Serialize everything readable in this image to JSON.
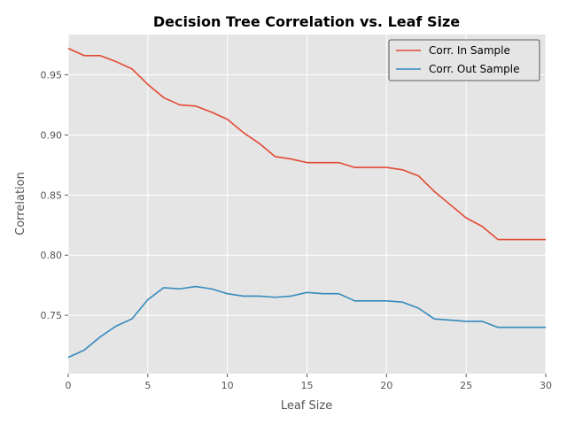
{
  "chart_data": {
    "type": "line",
    "title": "Decision Tree Correlation vs. Leaf Size",
    "xlabel": "Leaf Size",
    "ylabel": "Correlation",
    "xlim": [
      0,
      30
    ],
    "ylim": [
      0.7015,
      0.9835
    ],
    "xticks": [
      0,
      5,
      10,
      15,
      20,
      25,
      30
    ],
    "yticks": [
      0.75,
      0.8,
      0.85,
      0.9,
      0.95
    ],
    "xtick_labels": [
      "0",
      "5",
      "10",
      "15",
      "20",
      "25",
      "30"
    ],
    "ytick_labels": [
      "0.75",
      "0.80",
      "0.85",
      "0.90",
      "0.95"
    ],
    "grid": true,
    "legend_position": "top-right",
    "x": [
      0,
      1,
      2,
      3,
      4,
      5,
      6,
      7,
      8,
      9,
      10,
      11,
      12,
      13,
      14,
      15,
      16,
      17,
      18,
      19,
      20,
      21,
      22,
      23,
      24,
      25,
      26,
      27,
      28,
      29,
      30
    ],
    "series": [
      {
        "name": "Corr. In Sample",
        "color": "#E24A33",
        "values": [
          0.972,
          0.966,
          0.966,
          0.961,
          0.955,
          0.942,
          0.931,
          0.925,
          0.924,
          0.919,
          0.913,
          0.902,
          0.893,
          0.882,
          0.88,
          0.877,
          0.877,
          0.877,
          0.873,
          0.873,
          0.873,
          0.871,
          0.866,
          0.853,
          0.842,
          0.831,
          0.824,
          0.813,
          0.813,
          0.813,
          0.813
        ]
      },
      {
        "name": "Corr. Out Sample",
        "color": "#348ABD",
        "values": [
          0.715,
          0.721,
          0.732,
          0.741,
          0.747,
          0.763,
          0.773,
          0.772,
          0.774,
          0.772,
          0.768,
          0.766,
          0.766,
          0.765,
          0.766,
          0.769,
          0.768,
          0.768,
          0.762,
          0.762,
          0.762,
          0.761,
          0.756,
          0.747,
          0.746,
          0.745,
          0.745,
          0.74,
          0.74,
          0.74,
          0.74
        ]
      }
    ]
  }
}
